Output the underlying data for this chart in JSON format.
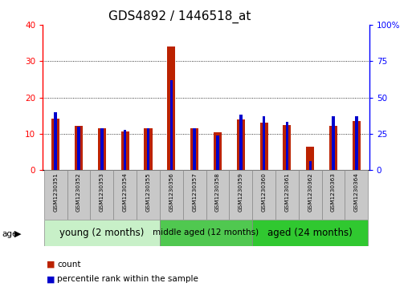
{
  "title": "GDS4892 / 1446518_at",
  "samples": [
    "GSM1230351",
    "GSM1230352",
    "GSM1230353",
    "GSM1230354",
    "GSM1230355",
    "GSM1230356",
    "GSM1230357",
    "GSM1230358",
    "GSM1230359",
    "GSM1230360",
    "GSM1230361",
    "GSM1230362",
    "GSM1230363",
    "GSM1230364"
  ],
  "counts": [
    14.2,
    12.1,
    11.6,
    10.6,
    11.5,
    34.0,
    11.5,
    10.5,
    14.0,
    13.1,
    12.5,
    6.5,
    12.1,
    13.6
  ],
  "percentiles": [
    40,
    30,
    29,
    28,
    29,
    62,
    29,
    24,
    38,
    37,
    33,
    6,
    37,
    37
  ],
  "groups": [
    {
      "label": "young (2 months)",
      "start": 0,
      "end": 5
    },
    {
      "label": "middle aged (12 months)",
      "start": 5,
      "end": 9
    },
    {
      "label": "aged (24 months)",
      "start": 9,
      "end": 14
    }
  ],
  "group_colors": [
    "#c8f0c8",
    "#50c850",
    "#30c830"
  ],
  "ylim_left": [
    0,
    40
  ],
  "ylim_right": [
    0,
    100
  ],
  "yticks_left": [
    0,
    10,
    20,
    30,
    40
  ],
  "yticks_right": [
    0,
    25,
    50,
    75,
    100
  ],
  "bar_color_red": "#BB2200",
  "bar_color_blue": "#0000CC",
  "red_bar_width": 0.35,
  "blue_bar_width": 0.12,
  "background_color": "#FFFFFF",
  "group_box_color": "#C8C8C8",
  "title_fontsize": 11,
  "legend_count": "count",
  "legend_percentile": "percentile rank within the sample"
}
